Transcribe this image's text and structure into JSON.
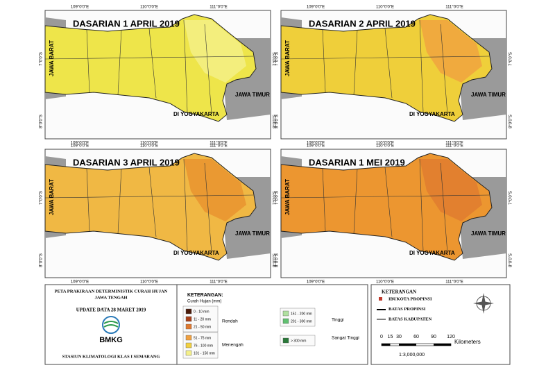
{
  "panels": [
    {
      "title": "DASARIAN 1 APRIL 2019"
    },
    {
      "title": "DASARIAN 2 APRIL 2019"
    },
    {
      "title": "DASARIAN 3 APRIL 2019"
    },
    {
      "title": "DASARIAN 1 MEI 2019"
    }
  ],
  "map_labels": {
    "west": "JAWA BARAT",
    "east": "JAWA TIMUR",
    "yogya": "DI YOGYAKARTA",
    "lon": [
      "109°0'0\"E",
      "110°0'0\"E",
      "111°0'0\"E"
    ],
    "lat": [
      "7°0'0\"S",
      "8°0'0\"S"
    ]
  },
  "info": {
    "title": "PETA PRAKIRAAN DETERMINISTIK CURAH HUJAN",
    "region": "JAWA TENGAH",
    "update": "UPDATE DATA 28 MARET 2019",
    "logo": "BMKG",
    "station": "STASIUN KLIMATOLOGI KLAS I SEMARANG"
  },
  "legend": {
    "title": "KETERANGAN:",
    "subtitle": "Curah Hujan (mm)",
    "groups": [
      {
        "name": "Rendah",
        "items": [
          {
            "label": "0 - 10 mm",
            "color": "#4a1a0a"
          },
          {
            "label": "11 - 20 mm",
            "color": "#a8401a"
          },
          {
            "label": "21 - 50 mm",
            "color": "#e07a30"
          }
        ]
      },
      {
        "name": "Menengah",
        "items": [
          {
            "label": "51 - 75 mm",
            "color": "#f0a040"
          },
          {
            "label": "76 - 100 mm",
            "color": "#f2d040"
          },
          {
            "label": "101 - 150 mm",
            "color": "#f4f08a"
          }
        ]
      },
      {
        "name": "Tinggi",
        "items": [
          {
            "label": "151 - 200 mm",
            "color": "#b0e0a0"
          },
          {
            "label": "201 - 300 mm",
            "color": "#60c070"
          }
        ]
      },
      {
        "name": "Sangat Tinggi",
        "items": [
          {
            "label": "> 300 mm",
            "color": "#2a7a3a"
          }
        ]
      }
    ]
  },
  "map_key": {
    "title": "KETERANGAN",
    "items": [
      "IBUKOTA PROPINSI",
      "BATAS PROPINSI",
      "BATAS KABUPATEN"
    ],
    "scale": [
      0,
      15,
      30,
      60,
      90,
      120
    ],
    "scale_unit": "Kilometers",
    "ratio": "1:3,000,000"
  }
}
